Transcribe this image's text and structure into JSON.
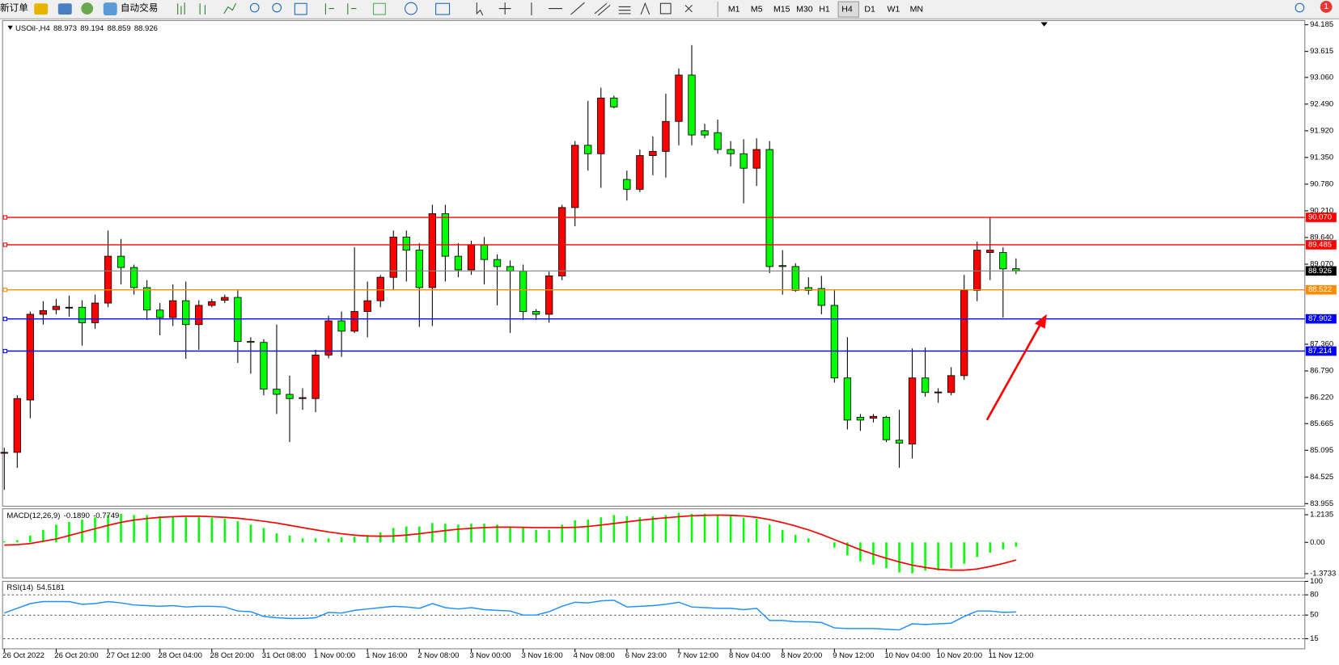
{
  "toolbar": {
    "new_order": "新订单",
    "auto_trading": "自动交易",
    "timeframes": [
      "M1",
      "M5",
      "M15",
      "M30",
      "H1",
      "H4",
      "D1",
      "W1",
      "MN"
    ],
    "notifications": 1
  },
  "chart_data": [
    {
      "type": "candlestick",
      "title": "USOil-,H4",
      "up_color": "#ff0000",
      "down_color": "#00ff00",
      "categories": [
        "26 Oct 2022",
        null,
        null,
        null,
        "26 Oct 20:00",
        null,
        null,
        null,
        "27 Oct 12:00",
        null,
        null,
        null,
        "28 Oct 04:00",
        null,
        null,
        null,
        "28 Oct 20:00",
        null,
        null,
        null,
        "31 Oct 08:00",
        null,
        null,
        null,
        "1 Nov 00:00",
        null,
        null,
        null,
        "1 Nov 16:00",
        null,
        null,
        null,
        "2 Nov 08:00",
        null,
        null,
        null,
        "3 Nov 00:00",
        null,
        null,
        null,
        "3 Nov 16:00",
        null,
        null,
        null,
        "4 Nov 08:00",
        null,
        null,
        null,
        "6 Nov 23:00",
        null,
        null,
        null,
        "7 Nov 12:00",
        null,
        null,
        null,
        "8 Nov 04:00",
        null,
        null,
        null,
        "8 Nov 20:00",
        null,
        null,
        null,
        "9 Nov 12:00",
        null,
        null,
        null,
        "10 Nov 04:00",
        null,
        null,
        null,
        "10 Nov 20:00",
        null,
        null,
        null,
        "11 Nov 12:00",
        null,
        null
      ],
      "open": [
        85.05,
        85.05,
        86.17,
        88.0,
        88.1,
        88.15,
        88.15,
        87.82,
        88.24,
        89.24,
        89.0,
        88.57,
        88.09,
        87.93,
        88.29,
        87.78,
        88.19,
        88.3,
        88.36,
        87.42,
        87.4,
        86.4,
        86.29,
        86.2,
        86.2,
        87.13,
        87.86,
        87.64,
        88.06,
        88.29,
        88.79,
        89.65,
        89.37,
        88.57,
        90.15,
        89.24,
        88.95,
        89.48,
        89.17,
        89.02,
        88.92,
        88.06,
        88.0,
        88.82,
        90.28,
        91.61,
        91.43,
        92.62,
        90.88,
        90.67,
        91.39,
        91.48,
        92.12,
        93.11,
        91.92,
        91.88,
        91.52,
        91.43,
        91.12,
        91.52,
        89.04,
        89.02,
        88.57,
        88.55,
        88.19,
        86.64,
        85.8,
        85.78,
        85.8,
        85.31,
        85.23,
        86.64,
        86.34,
        86.33,
        86.69,
        88.51,
        89.32,
        89.32,
        88.973
      ],
      "high": [
        85.15,
        86.27,
        88.06,
        88.28,
        88.33,
        88.4,
        88.3,
        88.42,
        89.79,
        89.61,
        89.06,
        88.73,
        88.24,
        88.64,
        88.7,
        88.3,
        88.33,
        88.42,
        88.51,
        87.51,
        87.47,
        87.78,
        86.69,
        86.42,
        87.24,
        87.97,
        88.06,
        89.43,
        88.7,
        88.84,
        89.79,
        89.79,
        89.52,
        90.34,
        90.34,
        89.52,
        89.57,
        89.65,
        89.28,
        89.15,
        89.06,
        88.11,
        88.91,
        90.34,
        91.7,
        92.56,
        92.84,
        92.67,
        91.07,
        91.52,
        91.8,
        92.71,
        93.25,
        93.75,
        92.07,
        92.16,
        91.7,
        91.74,
        91.76,
        91.7,
        89.37,
        89.09,
        88.79,
        88.82,
        88.51,
        87.51,
        85.87,
        85.87,
        85.83,
        85.96,
        87.27,
        87.29,
        86.42,
        86.87,
        88.84,
        89.55,
        90.07,
        89.43,
        89.194
      ],
      "low": [
        84.25,
        84.72,
        85.78,
        87.78,
        88.0,
        87.95,
        87.33,
        87.69,
        88.15,
        88.64,
        88.42,
        87.88,
        87.55,
        87.75,
        87.05,
        87.24,
        88.15,
        88.24,
        86.96,
        86.73,
        86.27,
        85.87,
        85.27,
        85.96,
        85.91,
        87.06,
        87.09,
        87.6,
        87.51,
        88.15,
        88.51,
        88.7,
        87.73,
        87.75,
        88.7,
        88.79,
        88.84,
        88.64,
        88.19,
        87.6,
        87.88,
        87.88,
        87.82,
        88.73,
        89.88,
        91.07,
        90.7,
        92.4,
        90.43,
        90.61,
        90.97,
        90.92,
        91.61,
        91.61,
        91.76,
        91.43,
        91.16,
        90.37,
        90.74,
        88.88,
        88.42,
        88.48,
        88.42,
        88.0,
        86.54,
        85.54,
        85.51,
        85.69,
        85.27,
        84.72,
        84.92,
        86.24,
        86.11,
        86.27,
        86.6,
        88.28,
        88.73,
        87.93,
        88.859
      ],
      "close": [
        85.05,
        86.2,
        88.0,
        88.08,
        88.17,
        88.15,
        87.82,
        88.24,
        89.24,
        89.0,
        88.57,
        88.09,
        87.93,
        88.29,
        87.78,
        88.19,
        88.27,
        88.36,
        87.42,
        87.4,
        86.4,
        86.29,
        86.2,
        86.22,
        87.13,
        87.86,
        87.64,
        88.06,
        88.29,
        88.79,
        89.65,
        89.37,
        88.57,
        90.15,
        89.24,
        88.95,
        89.48,
        89.17,
        89.02,
        88.92,
        88.06,
        88.0,
        88.82,
        90.28,
        91.61,
        91.43,
        92.62,
        92.43,
        90.67,
        91.39,
        91.48,
        92.12,
        93.11,
        91.83,
        91.83,
        91.52,
        91.43,
        91.12,
        91.52,
        89.02,
        89.02,
        88.51,
        88.51,
        88.19,
        86.64,
        85.74,
        85.74,
        85.82,
        85.32,
        85.25,
        86.64,
        86.33,
        86.34,
        86.69,
        88.51,
        89.37,
        89.37,
        88.97,
        88.926
      ],
      "ylim": [
        83.9,
        94.276
      ],
      "yticks": [
        94.185,
        93.615,
        {
          "value": 93.06,
          "label": "93.060"
        },
        {
          "value": 92.49,
          "label": "92.490"
        },
        {
          "value": 91.92,
          "label": "91.920"
        },
        {
          "value": 91.35,
          "label": "91.350"
        },
        {
          "value": 90.78,
          "label": "90.780"
        },
        {
          "value": 90.21,
          "label": "90.210"
        },
        {
          "value": 89.64,
          "label": "89.640"
        },
        {
          "value": 89.07,
          "label": "89.070"
        },
        {
          "value": 87.36,
          "label": "87.360"
        },
        {
          "value": 86.79,
          "label": "86.790"
        },
        {
          "value": 86.22,
          "label": "86.220"
        },
        85.665,
        85.095,
        84.525,
        83.955
      ],
      "levels": [
        {
          "value": 90.07,
          "label": "90.070",
          "color": "#ff0000"
        },
        {
          "value": 89.485,
          "color": "#ff0000"
        },
        {
          "value": 88.522,
          "color": "#ff8c00"
        },
        {
          "value": 87.902,
          "color": "#0000ff"
        },
        {
          "value": 87.214,
          "color": "#0000ff"
        }
      ]
    },
    {
      "type": "macd",
      "title": "MACD(12,26,9)",
      "ylim": [
        -1.561,
        1.476
      ],
      "yticks": [
        1.2135,
        {
          "value": 0,
          "label": "0.00"
        },
        -1.3733
      ],
      "series": [
        {
          "color": "#00ff00",
          "values": [
            0.05,
            0.1,
            0.3,
            0.55,
            0.78,
            0.9,
            1.0,
            1.1,
            1.2,
            1.25,
            1.2,
            1.2,
            1.15,
            1.15,
            1.1,
            1.1,
            1.08,
            1.04,
            0.93,
            0.78,
            0.63,
            0.4,
            0.3,
            0.18,
            0.18,
            0.18,
            0.22,
            0.25,
            0.33,
            0.44,
            0.63,
            0.7,
            0.7,
            0.85,
            0.82,
            0.78,
            0.82,
            0.82,
            0.78,
            0.7,
            0.63,
            0.55,
            0.55,
            0.78,
            0.97,
            1.0,
            1.1,
            1.2,
            1.15,
            1.1,
            1.15,
            1.2,
            1.3,
            1.26,
            1.26,
            1.22,
            1.18,
            1.08,
            1.04,
            0.78,
            0.55,
            0.33,
            0.18,
            -0.01,
            -0.23,
            -0.57,
            -0.83,
            -0.98,
            -1.13,
            -1.32,
            -1.36,
            -1.24,
            -1.24,
            -1.13,
            -0.94,
            -0.64,
            -0.45,
            -0.3,
            -0.189
          ],
          "value_labels": [
            null,
            null,
            null,
            null,
            null,
            null,
            null,
            null,
            null,
            null,
            null,
            null,
            null,
            null,
            null,
            null,
            null,
            null,
            null,
            null,
            null,
            null,
            null,
            null,
            null,
            null,
            null,
            null,
            null,
            null,
            null,
            null,
            null,
            null,
            null,
            null,
            null,
            null,
            null,
            null,
            null,
            null,
            null,
            null,
            null,
            null,
            null,
            null,
            null,
            null,
            null,
            null,
            null,
            null,
            null,
            null,
            null,
            null,
            null,
            null,
            null,
            null,
            null,
            null,
            null,
            null,
            null,
            null,
            null,
            null,
            null,
            null,
            null,
            null,
            null,
            null,
            null,
            null,
            "-0.1890"
          ]
        },
        {
          "color": "#ff0000",
          "values": [
            -0.12,
            -0.1,
            -0.05,
            0.05,
            0.15,
            0.3,
            0.45,
            0.6,
            0.75,
            0.88,
            0.98,
            1.05,
            1.1,
            1.13,
            1.15,
            1.15,
            1.13,
            1.1,
            1.06,
            1.0,
            0.93,
            0.85,
            0.75,
            0.65,
            0.55,
            0.46,
            0.38,
            0.32,
            0.28,
            0.27,
            0.28,
            0.32,
            0.38,
            0.45,
            0.52,
            0.58,
            0.62,
            0.65,
            0.67,
            0.67,
            0.66,
            0.65,
            0.65,
            0.65,
            0.66,
            0.7,
            0.76,
            0.83,
            0.9,
            0.97,
            1.03,
            1.08,
            1.13,
            1.17,
            1.19,
            1.2,
            1.19,
            1.16,
            1.1,
            1.0,
            0.87,
            0.72,
            0.55,
            0.35,
            0.12,
            -0.1,
            -0.32,
            -0.52,
            -0.7,
            -0.86,
            -1.0,
            -1.1,
            -1.18,
            -1.22,
            -1.22,
            -1.17,
            -1.06,
            -0.93,
            -0.7749
          ]
        }
      ]
    },
    {
      "type": "line",
      "title": "RSI(14)",
      "color": "#1e90ff",
      "grid": true,
      "ylim": [
        0,
        100
      ],
      "yticks": [
        100,
        80,
        50,
        15
      ],
      "values": [
        53,
        60,
        67,
        70,
        70,
        70,
        66,
        67,
        70,
        68,
        65,
        64,
        63,
        64,
        62,
        63,
        63,
        62,
        56,
        55,
        48,
        46,
        45,
        45,
        46,
        54,
        53,
        57,
        59,
        61,
        63,
        62,
        60,
        67,
        61,
        59,
        61,
        58,
        57,
        56,
        50,
        50,
        55,
        63,
        69,
        68,
        71,
        72,
        62,
        63,
        64,
        66,
        69,
        62,
        61,
        60,
        60,
        58,
        60,
        42,
        42,
        40,
        40,
        39,
        31,
        30,
        30,
        30,
        29,
        28,
        37,
        36,
        37,
        38,
        48,
        56,
        56,
        54,
        54.5181
      ]
    }
  ]
}
